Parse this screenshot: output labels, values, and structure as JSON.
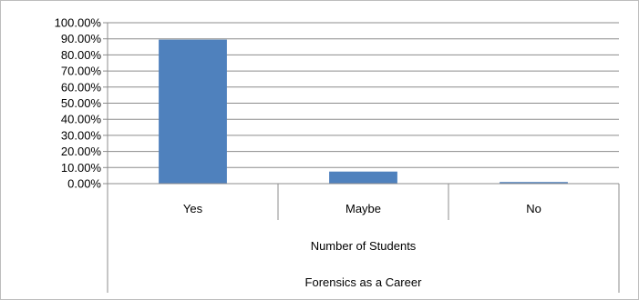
{
  "chart_data": {
    "type": "bar",
    "categories": [
      "Yes",
      "Maybe",
      "No"
    ],
    "series": [
      {
        "values": [
          89.5,
          7.5,
          1.0
        ],
        "color": "#4f81bd"
      }
    ],
    "ylim": [
      0,
      100
    ],
    "y_ticks": [
      "0.00%",
      "10.00%",
      "20.00%",
      "30.00%",
      "40.00%",
      "50.00%",
      "60.00%",
      "70.00%",
      "80.00%",
      "90.00%",
      "100.00%"
    ],
    "xlabel": "Number of Students",
    "xlabel2": "Forensics as a Career",
    "grid": true,
    "legend": "none"
  }
}
